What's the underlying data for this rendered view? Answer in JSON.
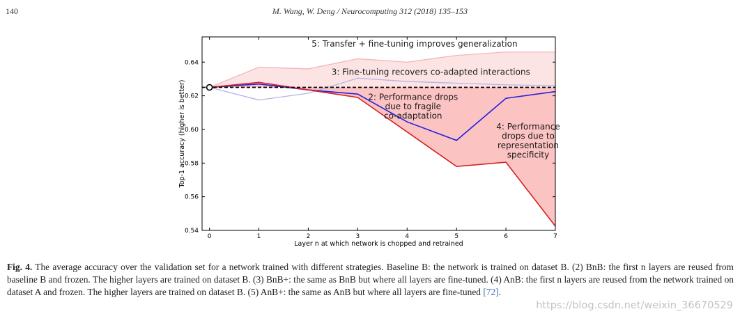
{
  "header": {
    "page_number": "140",
    "running_head": "M. Wang, W. Deng / Neurocomputing 312 (2018) 135–153"
  },
  "chart_data": {
    "type": "line",
    "xlabel": "Layer n at which network is chopped and retrained",
    "ylabel": "Top-1 accuracy (higher is better)",
    "x": [
      0,
      1,
      2,
      3,
      4,
      5,
      6,
      7
    ],
    "xlim": [
      -0.15,
      7.0
    ],
    "ylim": [
      0.54,
      0.655
    ],
    "x_ticks": [
      0,
      1,
      2,
      3,
      4,
      5,
      6,
      7
    ],
    "y_ticks": [
      0.54,
      0.56,
      0.58,
      0.6,
      0.62,
      0.64
    ],
    "y_tick_labels": [
      "0.54",
      "0.56",
      "0.58",
      "0.60",
      "0.62",
      "0.64"
    ],
    "baseline": {
      "value": 0.625,
      "style": "dashed",
      "color": "#000000"
    },
    "base_point": {
      "x": 0,
      "y": 0.625
    },
    "series": [
      {
        "values": [
          0.625,
          0.637,
          0.636,
          0.642,
          0.64,
          0.644,
          0.646,
          0.646
        ],
        "color": "#f2b7b7",
        "fill": "#fde4e4"
      },
      {
        "values": [
          0.625,
          0.6175,
          0.6215,
          0.6305,
          0.6285,
          0.6275,
          0.6265,
          0.626
        ],
        "color": "#b3b3e8"
      },
      {
        "values": [
          0.625,
          0.627,
          0.6235,
          0.621,
          0.6045,
          0.5935,
          0.6185,
          0.6225
        ],
        "color": "#2222dd",
        "fill": "#e6e6fa"
      },
      {
        "values": [
          0.625,
          0.628,
          0.6235,
          0.619,
          0.5985,
          0.578,
          0.5805,
          0.5425
        ],
        "color": "#d62222",
        "fill": "#fcc3c3"
      }
    ],
    "annotations": [
      {
        "lines": [
          "5: Transfer + fine-tuning improves generalization"
        ],
        "x": 4.15,
        "y": 0.6493,
        "align": "middle"
      },
      {
        "lines": [
          "3: Fine-tuning recovers co-adapted interactions"
        ],
        "x": 4.48,
        "y": 0.6325,
        "align": "middle"
      },
      {
        "lines": [
          "2: Performance drops",
          "due to fragile",
          "co-adaptation"
        ],
        "x": 4.12,
        "y": 0.6175,
        "align": "middle"
      },
      {
        "lines": [
          "4: Performance",
          "drops due to",
          "representation",
          "specificity"
        ],
        "x": 6.45,
        "y": 0.6,
        "align": "middle"
      }
    ]
  },
  "caption": {
    "label": "Fig. 4.",
    "text": " The average accuracy over the validation set for a network trained with different strategies. Baseline B: the network is trained on dataset B. (2) BnB: the first n layers are reused from baseline B and frozen. The higher layers are trained on dataset B. (3) BnB+: the same as BnB but where all layers are fine-tuned. (4) AnB: the first n layers are reused from the network trained on dataset A and frozen. The higher layers are trained on dataset B. (5) AnB+: the same as AnB but where all layers are fine-tuned ",
    "reference": "[72]",
    "end": "."
  },
  "watermark": "https://blog.csdn.net/weixin_36670529"
}
